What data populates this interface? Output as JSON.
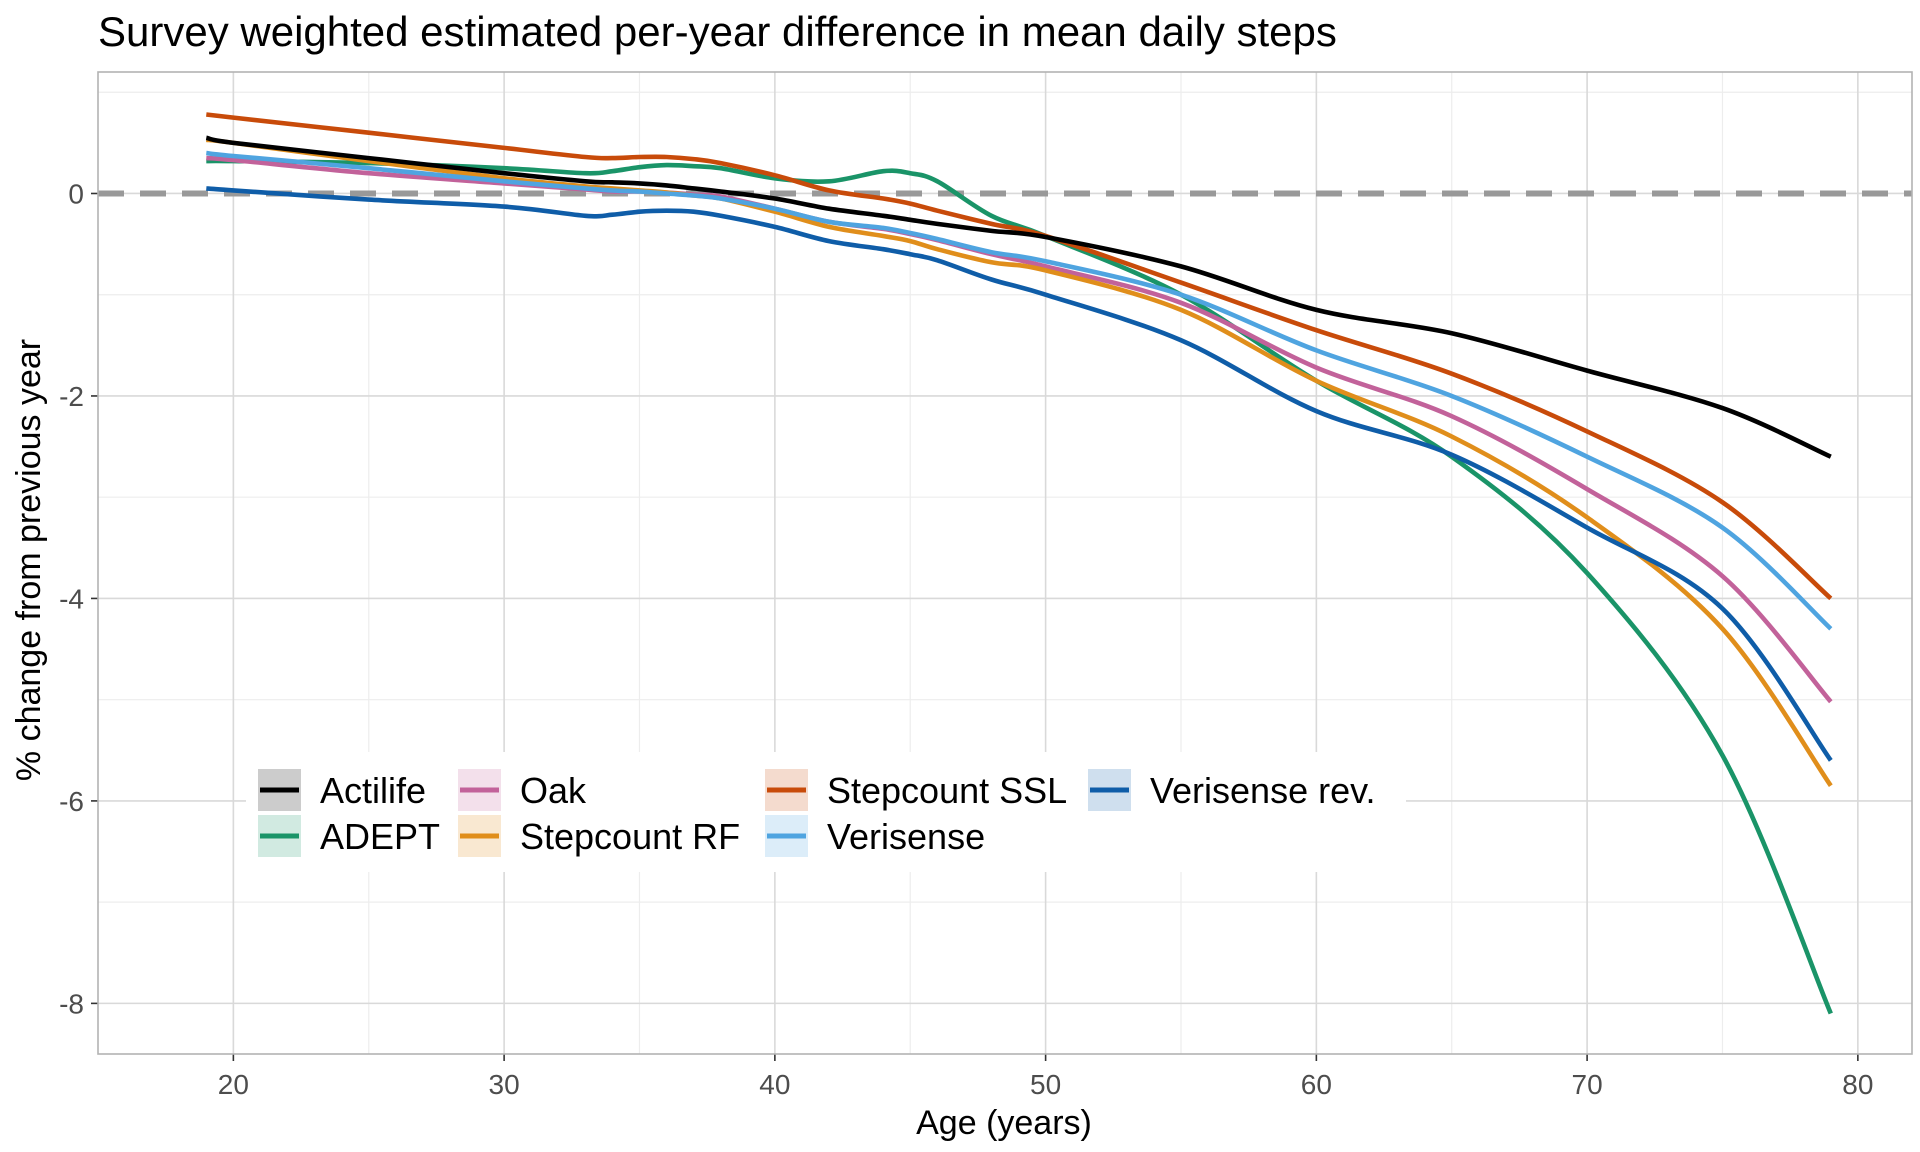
{
  "chart_data": {
    "type": "line",
    "title": "Survey weighted estimated per-year difference in mean daily steps",
    "xlabel": "Age (years)",
    "ylabel": "% change from previous year",
    "xlim": [
      15,
      82
    ],
    "ylim": [
      -8.5,
      1.2
    ],
    "x_ticks": [
      20,
      30,
      40,
      50,
      60,
      70,
      80
    ],
    "y_ticks": [
      0,
      -2,
      -4,
      -6,
      -8
    ],
    "grid": true,
    "reference_line": {
      "y": 0,
      "style": "dashed",
      "color": "#999999"
    },
    "legend_position": "bottom-left inside",
    "x": [
      19,
      20,
      25,
      30,
      33,
      34,
      35,
      36,
      37,
      38,
      40,
      42,
      44,
      45,
      46,
      48,
      50,
      55,
      60,
      65,
      70,
      75,
      79
    ],
    "series": [
      {
        "name": "Actilife",
        "color": "#000000",
        "values": [
          0.55,
          0.5,
          0.35,
          0.2,
          0.12,
          0.11,
          0.1,
          0.08,
          0.05,
          0.02,
          -0.05,
          -0.15,
          -0.22,
          -0.26,
          -0.3,
          -0.37,
          -0.43,
          -0.72,
          -1.15,
          -1.38,
          -1.75,
          -2.12,
          -2.6
        ]
      },
      {
        "name": "ADEPT",
        "color": "#1a9468",
        "values": [
          0.32,
          0.32,
          0.3,
          0.25,
          0.2,
          0.22,
          0.26,
          0.28,
          0.27,
          0.25,
          0.15,
          0.12,
          0.22,
          0.2,
          0.12,
          -0.22,
          -0.42,
          -1.0,
          -1.85,
          -2.6,
          -3.75,
          -5.55,
          -8.1
        ]
      },
      {
        "name": "Oak",
        "color": "#c2629a",
        "values": [
          0.35,
          0.33,
          0.2,
          0.1,
          0.04,
          0.02,
          0.02,
          0.01,
          -0.01,
          -0.03,
          -0.15,
          -0.28,
          -0.35,
          -0.4,
          -0.46,
          -0.6,
          -0.72,
          -1.08,
          -1.72,
          -2.2,
          -2.92,
          -3.78,
          -5.02
        ]
      },
      {
        "name": "Stepcount RF",
        "color": "#e08e1b",
        "values": [
          0.53,
          0.5,
          0.32,
          0.15,
          0.07,
          0.05,
          0.03,
          0.01,
          -0.02,
          -0.05,
          -0.18,
          -0.33,
          -0.42,
          -0.47,
          -0.55,
          -0.68,
          -0.76,
          -1.15,
          -1.85,
          -2.4,
          -3.2,
          -4.3,
          -5.85
        ]
      },
      {
        "name": "Stepcount SSL",
        "color": "#c84b0a",
        "values": [
          0.78,
          0.75,
          0.6,
          0.45,
          0.36,
          0.35,
          0.36,
          0.36,
          0.34,
          0.3,
          0.18,
          0.03,
          -0.05,
          -0.1,
          -0.17,
          -0.3,
          -0.42,
          -0.88,
          -1.35,
          -1.78,
          -2.35,
          -3.05,
          -4.0
        ]
      },
      {
        "name": "Verisense",
        "color": "#4fa4e0",
        "values": [
          0.4,
          0.37,
          0.25,
          0.12,
          0.05,
          0.03,
          0.02,
          0.0,
          -0.02,
          -0.05,
          -0.15,
          -0.28,
          -0.34,
          -0.39,
          -0.45,
          -0.58,
          -0.67,
          -1.0,
          -1.55,
          -2.0,
          -2.6,
          -3.3,
          -4.3
        ]
      },
      {
        "name": "Verisense rev.",
        "color": "#0f5da8",
        "values": [
          0.05,
          0.03,
          -0.06,
          -0.13,
          -0.22,
          -0.21,
          -0.18,
          -0.17,
          -0.18,
          -0.22,
          -0.33,
          -0.47,
          -0.55,
          -0.6,
          -0.66,
          -0.85,
          -1.0,
          -1.45,
          -2.15,
          -2.58,
          -3.3,
          -4.1,
          -5.6
        ]
      }
    ]
  }
}
